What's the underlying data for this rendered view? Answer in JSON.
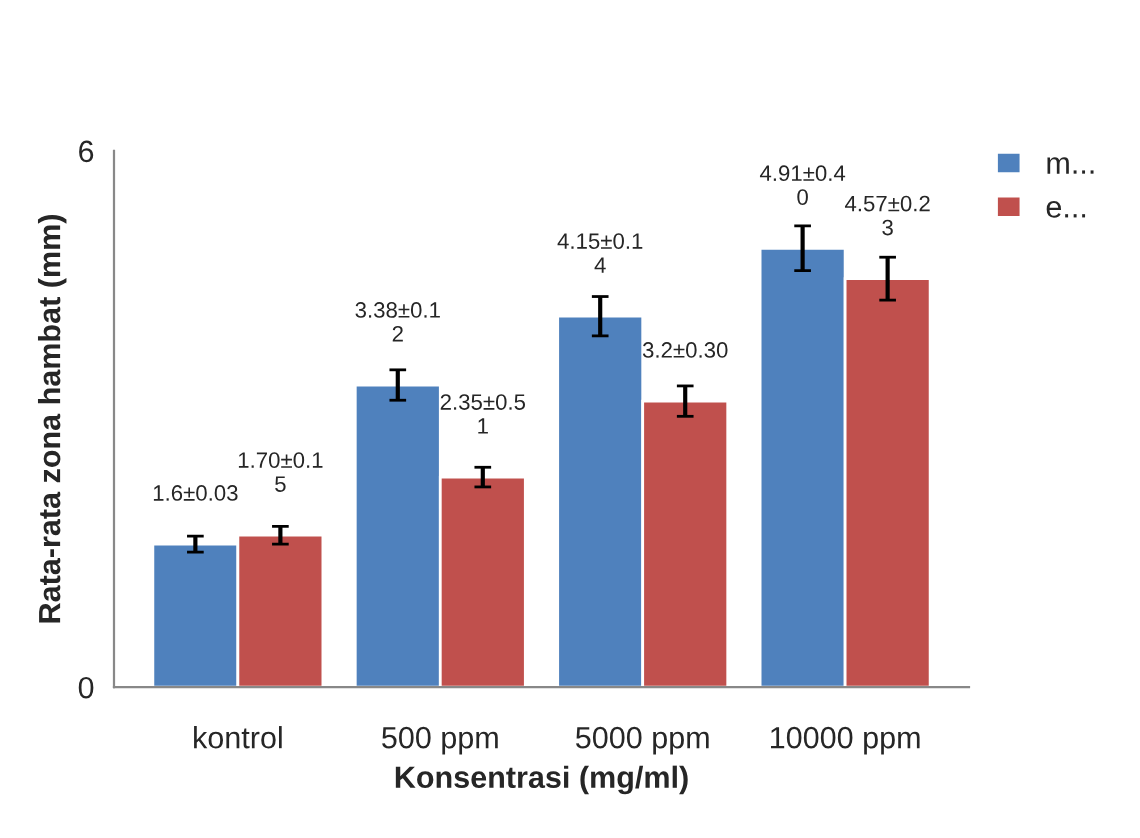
{
  "chart_data": {
    "type": "bar",
    "xlabel": "Konsentrasi (mg/ml)",
    "ylabel": "Rata-rata zona hambat (mm)",
    "categories": [
      "kontrol",
      "500 ppm",
      "5000 ppm",
      "10000 ppm"
    ],
    "series": [
      {
        "name": "m...",
        "color": "#4f81bd",
        "values": [
          1.6,
          3.38,
          4.15,
          4.91
        ],
        "errors": [
          0.09,
          0.17,
          0.22,
          0.25
        ],
        "value_labels": [
          "1.6±0.03",
          "3.38±0.12",
          "4.15±0.14",
          "4.91±0.40"
        ]
      },
      {
        "name": "e...",
        "color": "#c0504d",
        "values": [
          1.7,
          2.35,
          3.2,
          4.57
        ],
        "errors": [
          0.1,
          0.11,
          0.17,
          0.24
        ],
        "value_labels": [
          "1.70±0.15",
          "2.35±0.51",
          "3.2±0.30",
          "4.57±0.23"
        ]
      }
    ],
    "ylim": [
      0,
      6
    ],
    "yticks": [
      0,
      6
    ],
    "grid": false,
    "legend": "top right"
  }
}
